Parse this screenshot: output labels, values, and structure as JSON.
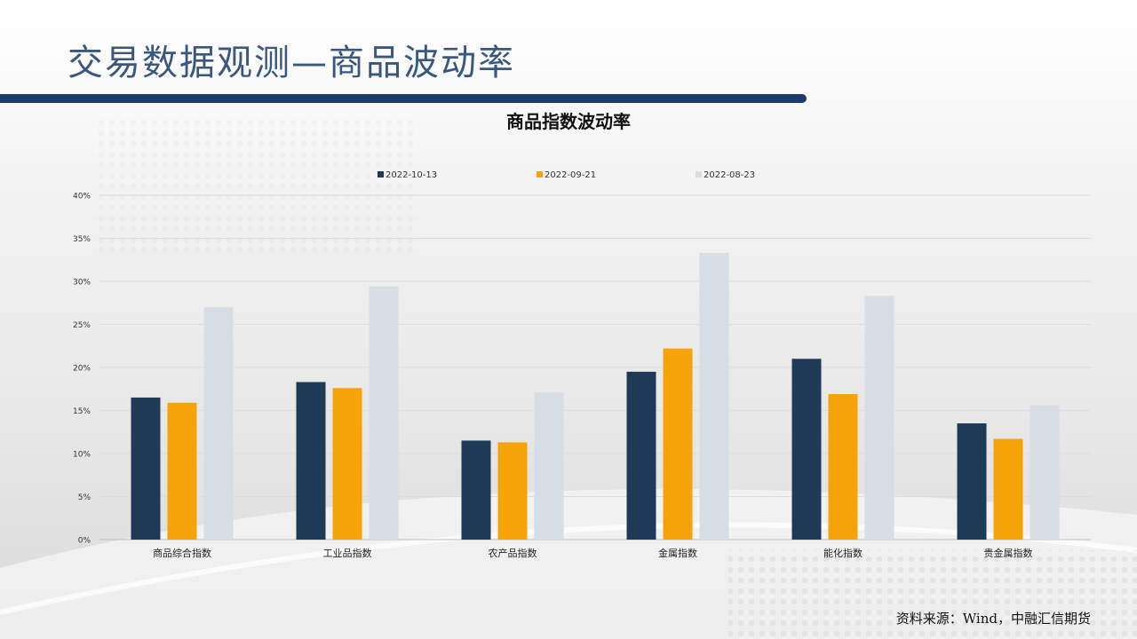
{
  "slide": {
    "title": "交易数据观测—商品波动率",
    "source": "资料来源：Wind，中融汇信期货"
  },
  "colors": {
    "title_bar": "#1d3a6b",
    "series": [
      "#1f3a56",
      "#f6a30a",
      "#d6dde5"
    ]
  },
  "chart_data": {
    "type": "bar",
    "title": "商品指数波动率",
    "categories": [
      "商品综合指数",
      "工业品指数",
      "农产品指数",
      "金属指数",
      "能化指数",
      "贵金属指数"
    ],
    "series": [
      {
        "name": "2022-10-13",
        "values": [
          0.165,
          0.183,
          0.115,
          0.195,
          0.21,
          0.135
        ]
      },
      {
        "name": "2022-09-21",
        "values": [
          0.159,
          0.176,
          0.113,
          0.222,
          0.169,
          0.117
        ]
      },
      {
        "name": "2022-08-23",
        "values": [
          0.27,
          0.294,
          0.171,
          0.333,
          0.283,
          0.156
        ]
      }
    ],
    "yticks": [
      "0%",
      "5%",
      "10%",
      "15%",
      "20%",
      "25%",
      "30%",
      "35%",
      "40%"
    ],
    "ylim": [
      0,
      0.4
    ],
    "ytick_step": 0.05,
    "grid": true,
    "legend_position": "top"
  }
}
